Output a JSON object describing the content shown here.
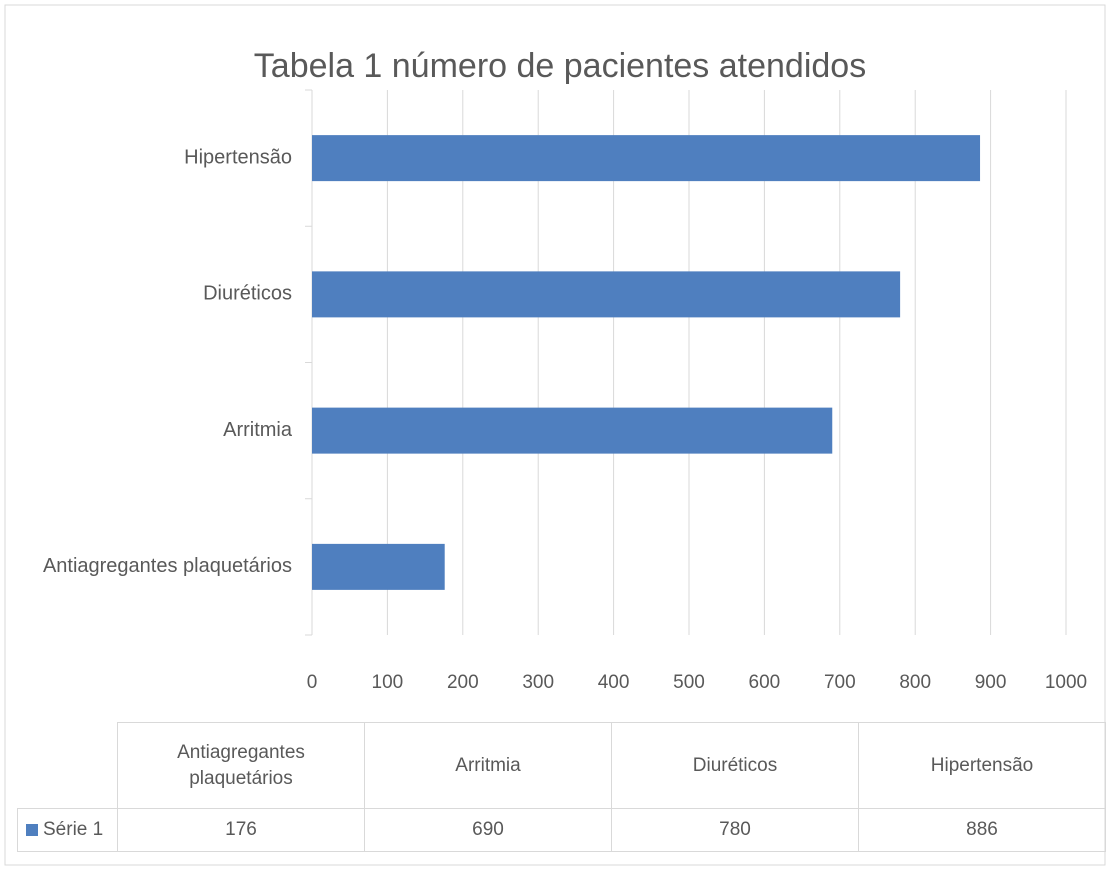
{
  "chart_data": {
    "type": "bar",
    "orientation": "horizontal",
    "title": "Tabela 1 número de pacientes atendidos",
    "categories": [
      "Antiagregantes plaquetários",
      "Arritmia",
      "Diuréticos",
      "Hipertensão"
    ],
    "series": [
      {
        "name": "Série 1",
        "color": "#4f7fbf",
        "values": [
          176,
          690,
          780,
          886
        ]
      }
    ],
    "xlim": [
      0,
      1000
    ],
    "xticks": [
      0,
      100,
      200,
      300,
      400,
      500,
      600,
      700,
      800,
      900,
      1000
    ],
    "grid": true,
    "data_table": true
  }
}
